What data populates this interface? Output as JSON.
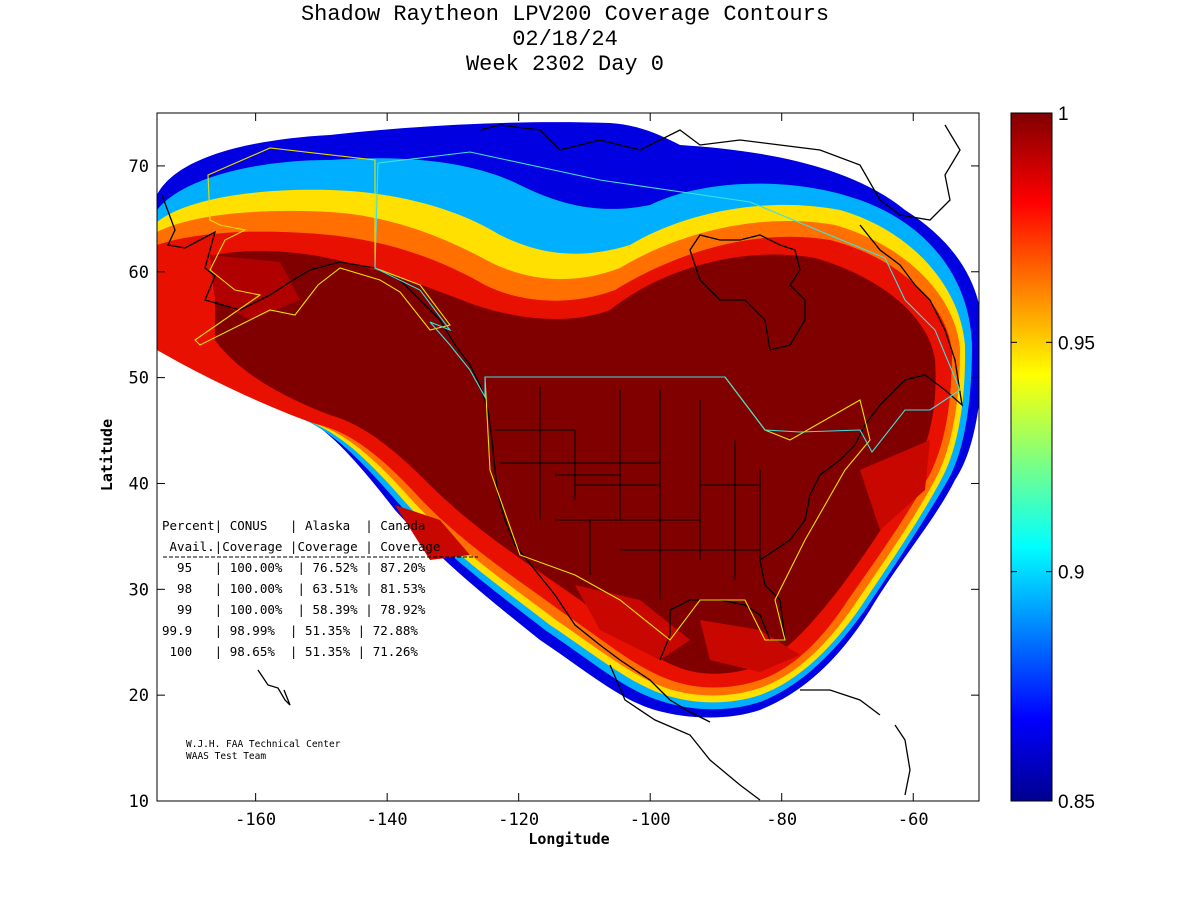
{
  "title": {
    "line1": "Shadow Raytheon LPV200 Coverage Contours",
    "line2": "02/18/24",
    "line3": "Week 2302 Day 0"
  },
  "axes": {
    "xlabel": "Longitude",
    "ylabel": "Latitude",
    "x_range": [
      -175,
      -50
    ],
    "y_range": [
      10,
      75
    ],
    "x_ticks": [
      "-160",
      "-140",
      "-120",
      "-100",
      "-80",
      "-60"
    ],
    "x_tick_values": [
      -160,
      -140,
      -120,
      -100,
      -80,
      -60
    ],
    "y_ticks": [
      "10",
      "20",
      "30",
      "40",
      "50",
      "60",
      "70"
    ],
    "y_tick_values": [
      10,
      20,
      30,
      40,
      50,
      60,
      70
    ]
  },
  "colorbar": {
    "range": [
      0.85,
      1
    ],
    "ticks": [
      "1",
      "0.95",
      "0.9",
      "0.85"
    ],
    "tick_values": [
      1,
      0.95,
      0.9,
      0.85
    ],
    "colormap": "jet",
    "colors": [
      "#00008f",
      "#0000ff",
      "#00ffff",
      "#ffff00",
      "#ff0000",
      "#800000"
    ]
  },
  "coverage_table": {
    "header1": "Percent| CONUS   | Alaska  | Canada",
    "header2": " Avail.|Coverage |Coverage | Coverage",
    "rows": [
      "  95   | 100.00%  | 76.52% | 87.20%",
      "  98   | 100.00%  | 63.51% | 81.53%",
      "  99   | 100.00%  | 58.39% | 78.92%",
      "99.9   | 98.99%  | 51.35% | 72.88%",
      " 100   | 98.65%  | 51.35% | 71.26%"
    ],
    "data": [
      {
        "percent": "95",
        "conus": "100.00%",
        "alaska": "76.52%",
        "canada": "87.20%"
      },
      {
        "percent": "98",
        "conus": "100.00%",
        "alaska": "63.51%",
        "canada": "81.53%"
      },
      {
        "percent": "99",
        "conus": "100.00%",
        "alaska": "58.39%",
        "canada": "78.92%"
      },
      {
        "percent": "99.9",
        "conus": "98.99%",
        "alaska": "51.35%",
        "canada": "72.88%"
      },
      {
        "percent": "100",
        "conus": "98.65%",
        "alaska": "51.35%",
        "canada": "71.26%"
      }
    ]
  },
  "credit": {
    "line1": "W.J.H. FAA Technical Center",
    "line2": "WAAS Test Team"
  },
  "colors": {
    "conus_boundary": "#e8e000",
    "canada_boundary": "#40e0e0",
    "coastline": "#000000"
  }
}
